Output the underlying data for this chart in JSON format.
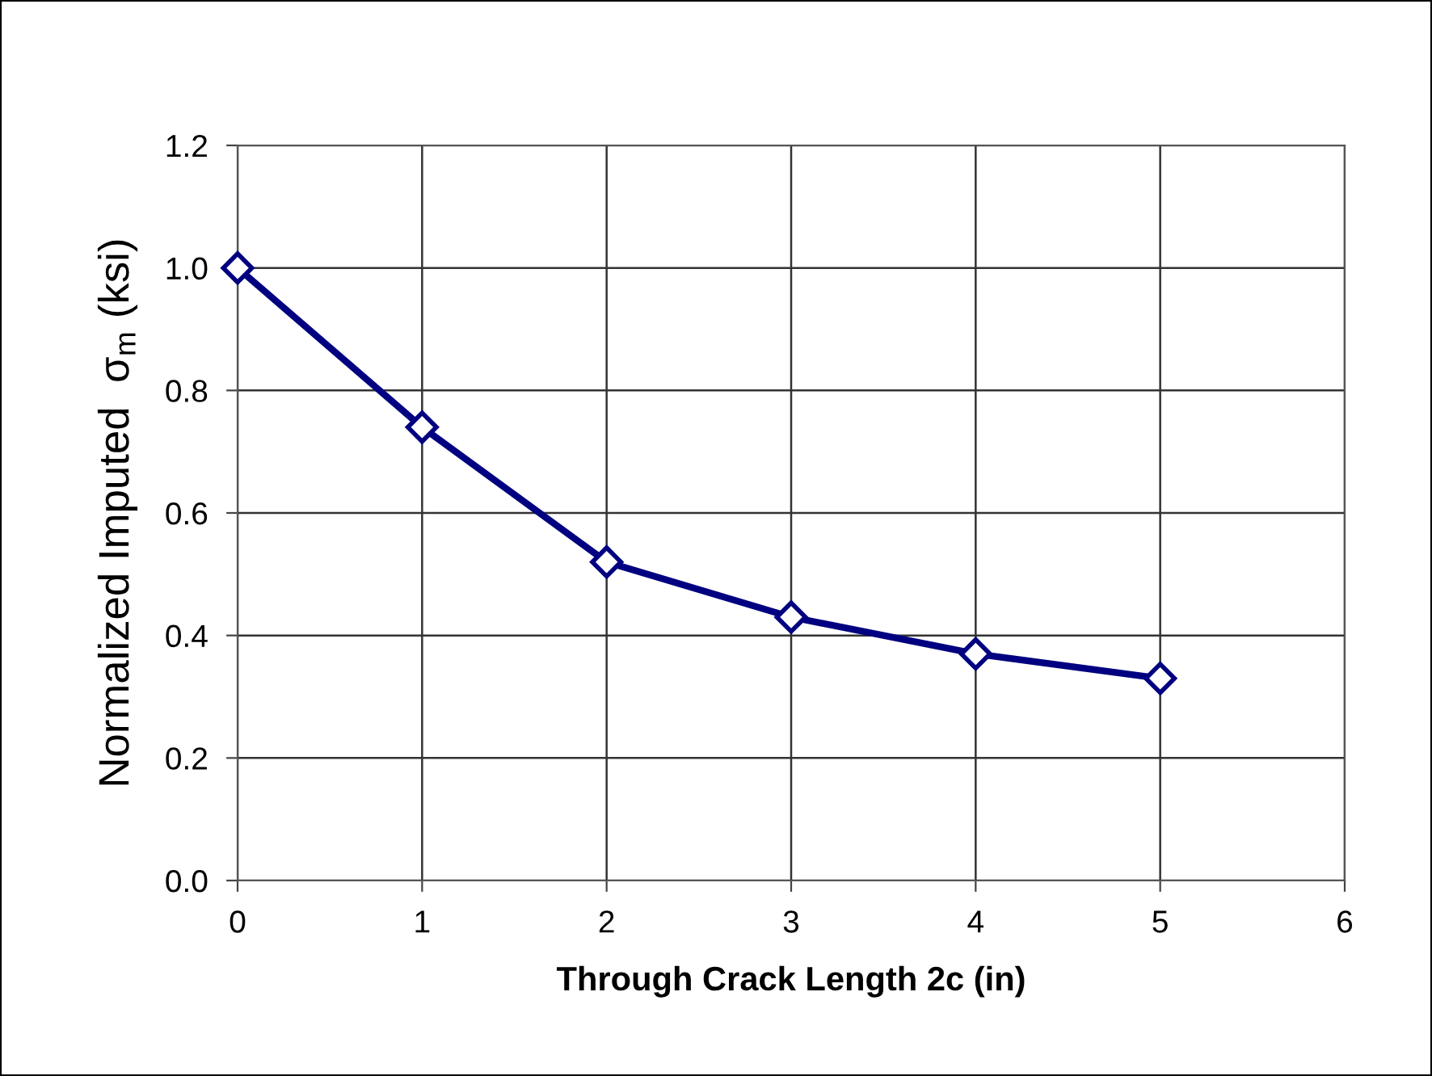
{
  "chart_data": {
    "type": "line",
    "xlabel": "Through Crack Length 2c (in)",
    "ylabel": "Normalized Imputed  σ$_{m}$ (ksi)",
    "x": [
      0,
      1,
      2,
      3,
      4,
      5
    ],
    "series": [
      {
        "color": "#000080",
        "values": [
          1.0,
          0.74,
          0.52,
          0.43,
          0.37,
          0.33
        ]
      }
    ],
    "xlim": [
      0,
      6
    ],
    "xticks": [
      0,
      1,
      2,
      3,
      4,
      5,
      6
    ],
    "ylim": [
      0.0,
      1.2
    ],
    "yticks": [
      {
        "value": 0,
        "label": "0.0"
      },
      {
        "value": 0.2,
        "label": "0.2"
      },
      {
        "value": 0.4,
        "label": "0.4"
      },
      {
        "value": 0.6,
        "label": "0.6"
      },
      {
        "value": 0.8,
        "label": "0.8"
      },
      {
        "value": 1.0,
        "label": "1.0"
      },
      {
        "value": 1.2,
        "label": "1.2"
      }
    ],
    "grid": true,
    "marker": "diamond",
    "line_style": "solid"
  }
}
